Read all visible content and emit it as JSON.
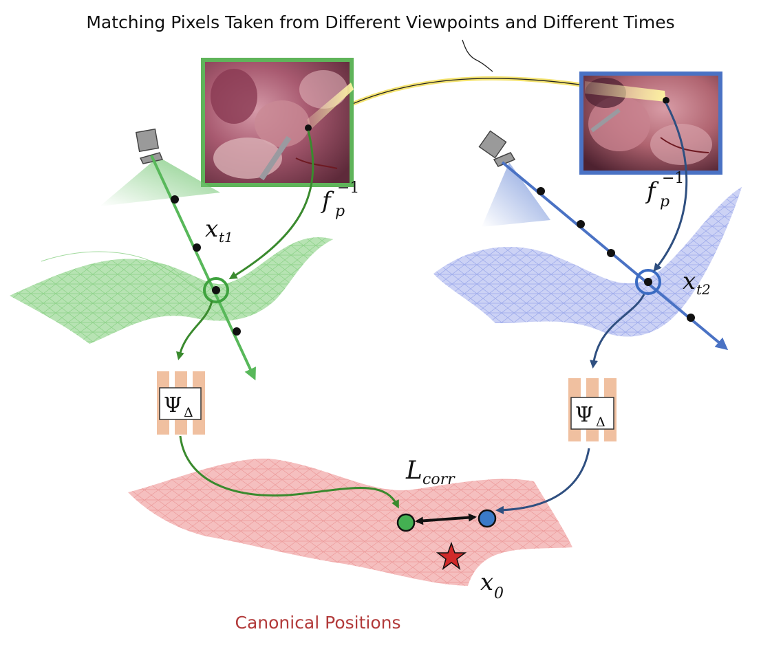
{
  "title": "Matching Pixels Taken from Different Viewpoints and Different Times",
  "caption": "Canonical Positions",
  "labels": {
    "inverse_projection": {
      "base": "f",
      "sub": "p",
      "sup": "−1"
    },
    "point_t1": {
      "base": "x",
      "sub": "t1"
    },
    "point_t2": {
      "base": "x",
      "sub": "t2"
    },
    "deformation_field": {
      "base": "Ψ",
      "sub": "Δ"
    },
    "loss": {
      "base": "L",
      "sub": "corr"
    },
    "canonical_point": {
      "base": "x",
      "sub": "0"
    }
  },
  "colors": {
    "green": "#58b85a",
    "dark_green": "#3a8a2e",
    "blue": "#4a72c4",
    "dark_blue": "#2f4f80",
    "red_surface": "#e7787a",
    "caption": "#b23a3a",
    "mlp_bars": "#f0c0a0",
    "star": "#d12a2a"
  }
}
